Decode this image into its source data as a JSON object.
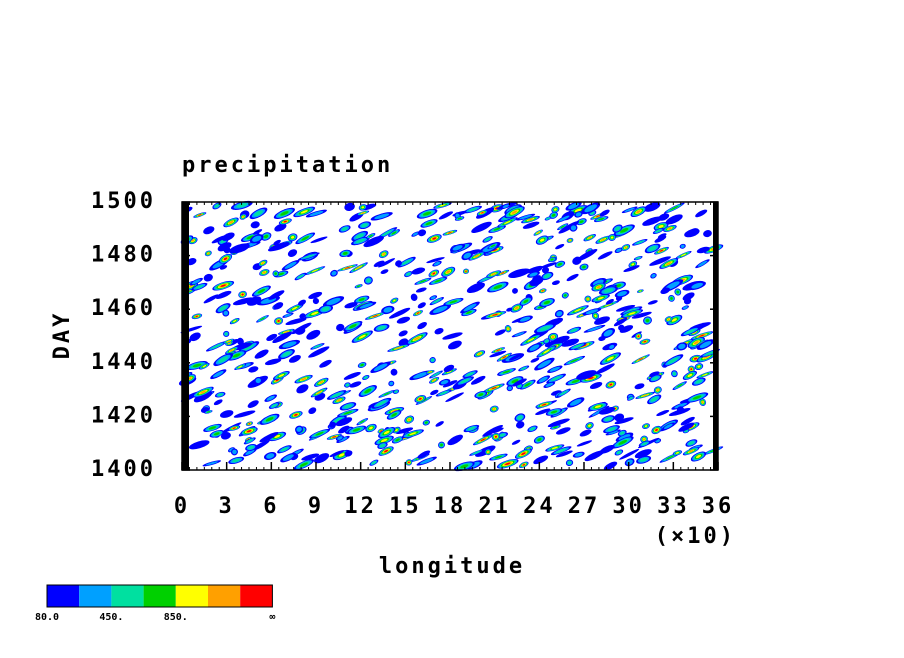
{
  "chart_data": {
    "type": "contour",
    "title": "precipitation",
    "x_label": "longitude",
    "y_label": "DAY",
    "x_multiplier": "(×10)",
    "xlim": [
      0,
      36
    ],
    "xticks": [
      0,
      3,
      6,
      9,
      12,
      15,
      18,
      21,
      24,
      27,
      30,
      33,
      36
    ],
    "ylim": [
      1400,
      1500
    ],
    "yticks": [
      1400,
      1420,
      1440,
      1460,
      1480,
      1500
    ],
    "colorbar": {
      "colors": [
        "#0000ff",
        "#00a0ff",
        "#00e0a0",
        "#00d000",
        "#ffff00",
        "#ffa000",
        "#ff0000"
      ],
      "ticks": [
        {
          "value": 80,
          "label": "80.0"
        },
        {
          "value": 450,
          "label": "450."
        },
        {
          "value": 850,
          "label": "850."
        },
        {
          "value": null,
          "label": "∞"
        }
      ]
    }
  }
}
